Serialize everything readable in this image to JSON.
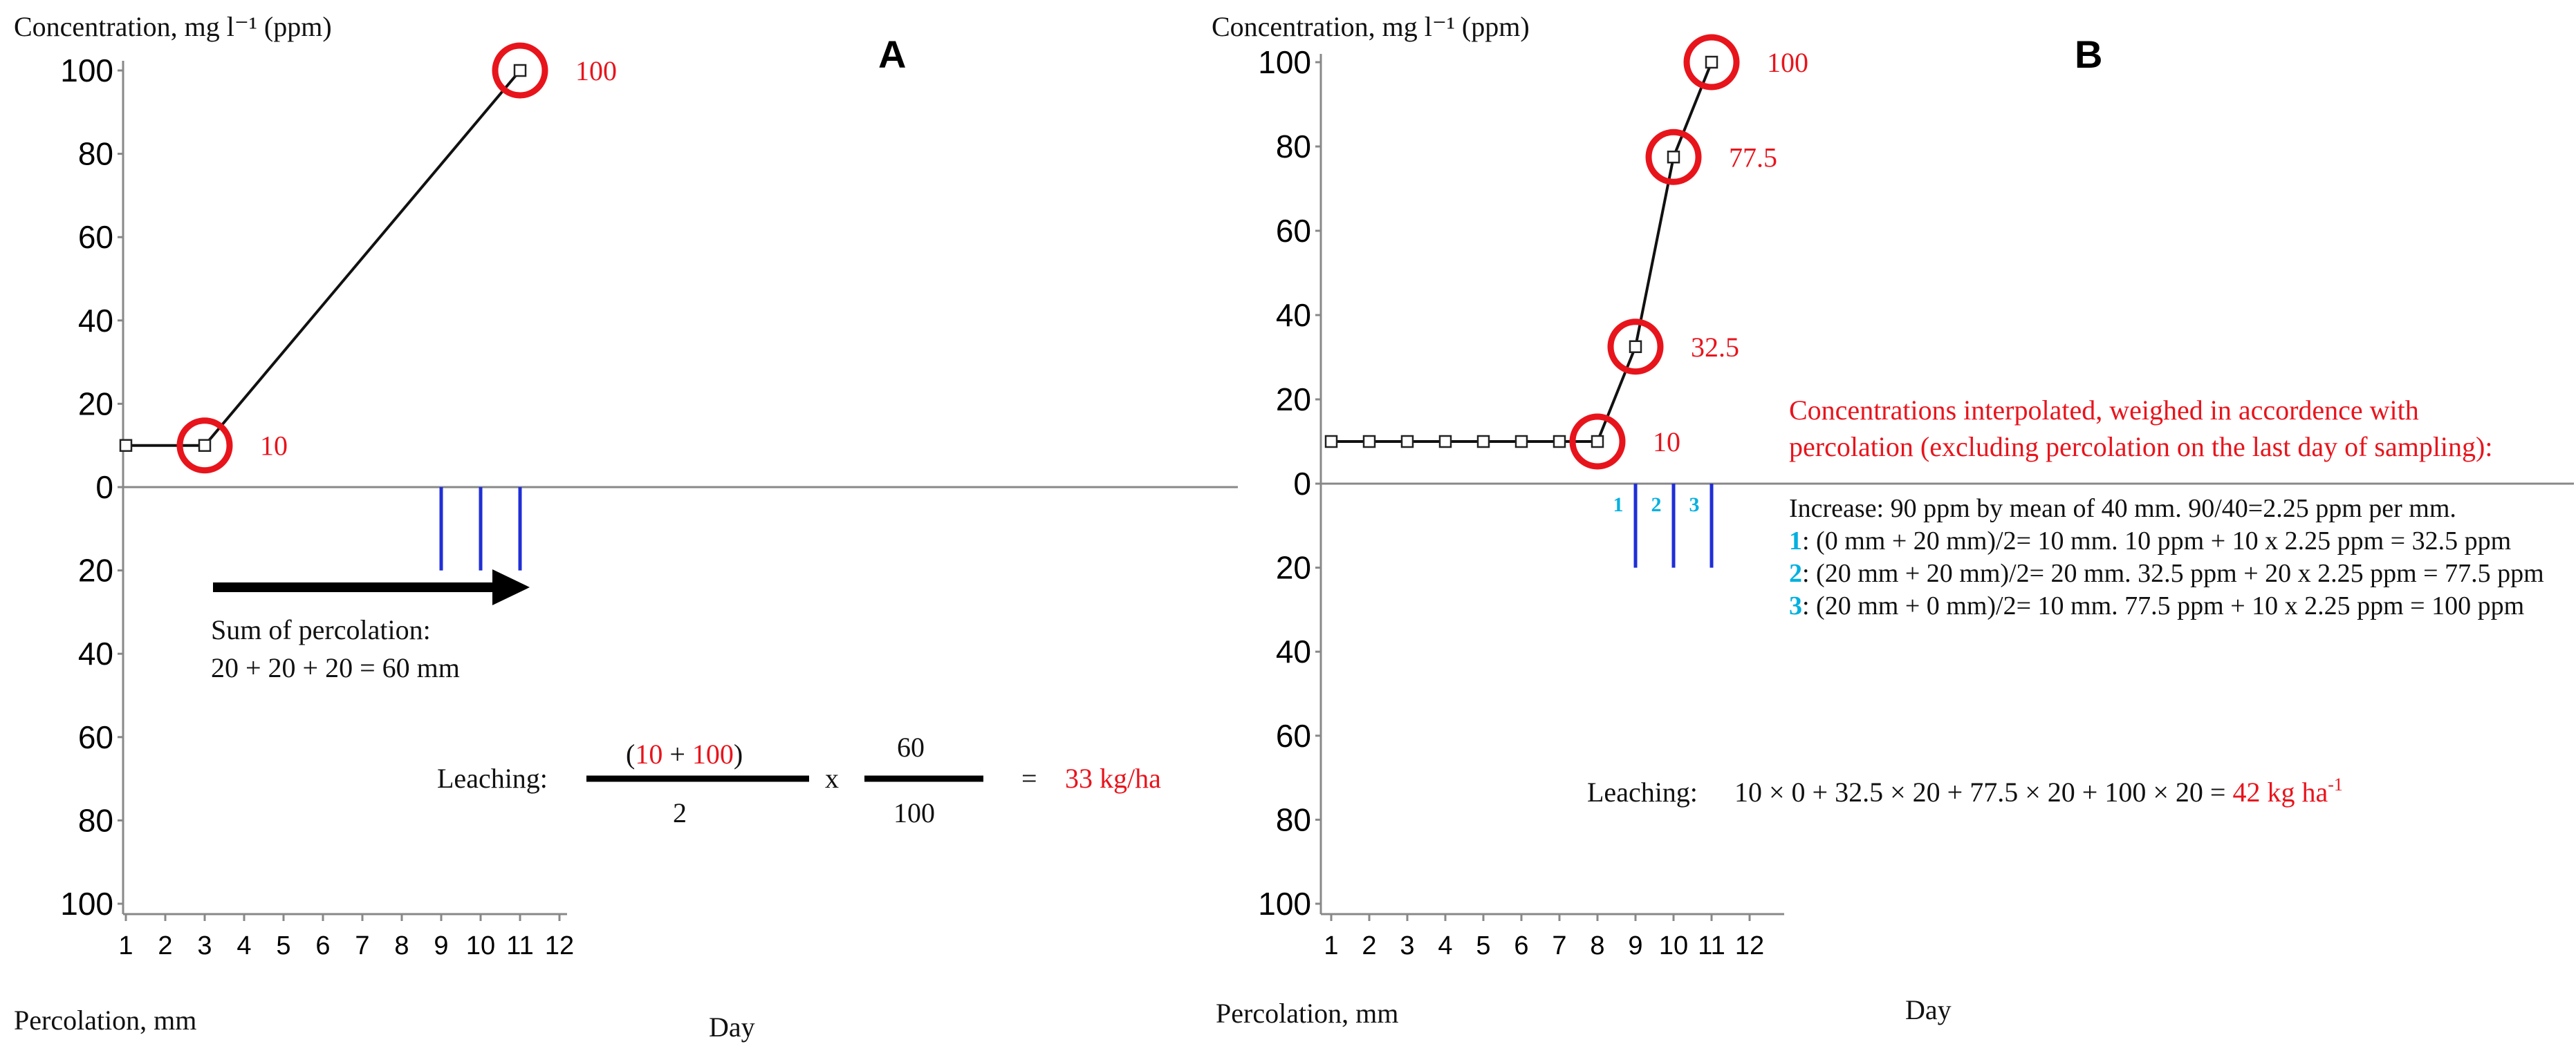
{
  "chart_data": [
    {
      "type": "line",
      "panel_label": "A",
      "ylabel_top": "Concentration,  mg l⁻¹ (ppm)",
      "ylabel_bottom": "Percolation, mm",
      "xlabel": "Day",
      "y_ticks_top": [
        "100",
        "80",
        "60",
        "40",
        "20",
        "0"
      ],
      "y_ticks_bottom": [
        "20",
        "40",
        "60",
        "80",
        "100"
      ],
      "ylim_top": [
        0,
        100
      ],
      "ylim_bottom": [
        0,
        100
      ],
      "x_ticks": [
        "1",
        "2",
        "3",
        "4",
        "5",
        "6",
        "7",
        "8",
        "9",
        "10",
        "11",
        "12"
      ],
      "xlim": [
        1,
        12
      ],
      "series": [
        {
          "name": "Concentration",
          "x": [
            1,
            3,
            11
          ],
          "y": [
            10,
            10,
            100
          ]
        }
      ],
      "highlighted_points": [
        {
          "x": 3,
          "y": 10,
          "label": "10"
        },
        {
          "x": 11,
          "y": 100,
          "label": "100"
        }
      ],
      "percolation": [
        {
          "day": 9,
          "mm": 20
        },
        {
          "day": 10,
          "mm": 20
        },
        {
          "day": 11,
          "mm": 20
        }
      ],
      "sum_text_1": "Sum of percolation:",
      "sum_text_2": "20 + 20 + 20 = 60 mm",
      "leaching_label": "Leaching:",
      "frac1_paren_open": "(",
      "frac1_a": "10",
      "frac1_plus": " + ",
      "frac1_b": "100",
      "frac1_paren_close": ")",
      "frac1_den": "2",
      "times": "x",
      "frac2_num": "60",
      "frac2_den": "100",
      "equals": "=",
      "result": "33 kg/ha"
    },
    {
      "type": "line",
      "panel_label": "B",
      "ylabel_top": "Concentration,  mg l⁻¹ (ppm)",
      "ylabel_bottom": "Percolation, mm",
      "xlabel": "Day",
      "y_ticks_top": [
        "100",
        "80",
        "60",
        "40",
        "20",
        "0"
      ],
      "y_ticks_bottom": [
        "20",
        "40",
        "60",
        "80",
        "100"
      ],
      "ylim_top": [
        0,
        100
      ],
      "ylim_bottom": [
        0,
        100
      ],
      "x_ticks": [
        "1",
        "2",
        "3",
        "4",
        "5",
        "6",
        "7",
        "8",
        "9",
        "10",
        "11",
        "12"
      ],
      "xlim": [
        1,
        12
      ],
      "series": [
        {
          "name": "Concentration",
          "x": [
            1,
            2,
            3,
            4,
            5,
            6,
            7,
            8,
            9,
            10,
            11
          ],
          "y": [
            10,
            10,
            10,
            10,
            10,
            10,
            10,
            10,
            32.5,
            77.5,
            100
          ]
        }
      ],
      "highlighted_points": [
        {
          "x": 8,
          "y": 10,
          "label": "10"
        },
        {
          "x": 9,
          "y": 32.5,
          "label": "32.5"
        },
        {
          "x": 10,
          "y": 77.5,
          "label": "77.5"
        },
        {
          "x": 11,
          "y": 100,
          "label": "100"
        }
      ],
      "percolation": [
        {
          "day": 9,
          "mm": 20,
          "label": "1"
        },
        {
          "day": 10,
          "mm": 20,
          "label": "2"
        },
        {
          "day": 11,
          "mm": 20,
          "label": "3"
        }
      ],
      "red_note_1": "Concentrations  interpolated,  weighed  in  accordence  with",
      "red_note_2": "percolation (excluding percolation on the last day of sampling):",
      "note_line_0": "Increase: 90 ppm by mean of 40 mm. 90/40=2.25  ppm per mm.",
      "note_1_num": "1",
      "note_1_text": ": (0 mm + 20 mm)/2= 10 mm. 10 ppm + 10 x 2.25 ppm = 32.5 ppm",
      "note_2_num": "2",
      "note_2_text": ": (20 mm + 20 mm)/2= 20 mm. 32.5 ppm + 20 x 2.25 ppm = 77.5 ppm",
      "note_3_num": "3",
      "note_3_text": ": (20 mm + 0 mm)/2= 10 mm. 77.5 ppm + 10 x 2.25 ppm = 100 ppm",
      "leaching_label": "Leaching:",
      "leaching_formula": "10 × 0 + 32.5 × 20 + 77.5 × 20 + 100 × 20 = ",
      "leaching_result": "42 kg ha",
      "leaching_result_sup": "-1"
    }
  ]
}
